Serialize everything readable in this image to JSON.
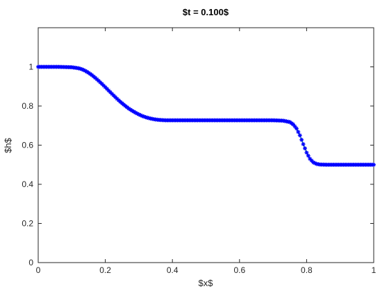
{
  "chart_data": {
    "type": "line",
    "title": "$t = 0.100$",
    "xlabel": "$x$",
    "ylabel": "$h$",
    "xlim": [
      0,
      1
    ],
    "ylim": [
      0,
      1.2
    ],
    "grid": false,
    "x_ticks": [
      0,
      0.2,
      0.4,
      0.6,
      0.8,
      1
    ],
    "x_tick_labels": [
      "0",
      "0.2",
      "0.4",
      "0.6",
      "0.8",
      "1"
    ],
    "y_ticks": [
      0,
      0.2,
      0.4,
      0.6,
      0.8,
      1
    ],
    "y_tick_labels": [
      "0",
      "0.2",
      "0.4",
      "0.6",
      "0.8",
      "1"
    ],
    "series": [
      {
        "marker": "asterisk",
        "color": "#0000ff",
        "line_color": "#008080",
        "x": [
          0.0,
          0.02,
          0.04,
          0.06,
          0.08,
          0.1,
          0.12,
          0.13,
          0.14,
          0.15,
          0.16,
          0.17,
          0.18,
          0.19,
          0.2,
          0.21,
          0.22,
          0.23,
          0.24,
          0.25,
          0.26,
          0.27,
          0.28,
          0.29,
          0.3,
          0.31,
          0.32,
          0.33,
          0.34,
          0.35,
          0.36,
          0.37,
          0.38,
          0.39,
          0.4,
          0.41,
          0.42,
          0.44,
          0.46,
          0.48,
          0.5,
          0.55,
          0.6,
          0.65,
          0.7,
          0.73,
          0.75,
          0.76,
          0.77,
          0.78,
          0.79,
          0.8,
          0.81,
          0.82,
          0.83,
          0.84,
          0.86,
          0.88,
          0.9,
          0.95,
          1.0
        ],
        "y": [
          1.0,
          1.0,
          1.0,
          1.0,
          0.999,
          0.998,
          0.993,
          0.988,
          0.98,
          0.97,
          0.958,
          0.944,
          0.929,
          0.913,
          0.896,
          0.879,
          0.862,
          0.845,
          0.829,
          0.814,
          0.8,
          0.787,
          0.776,
          0.766,
          0.757,
          0.749,
          0.743,
          0.738,
          0.734,
          0.731,
          0.729,
          0.728,
          0.727,
          0.727,
          0.727,
          0.727,
          0.727,
          0.727,
          0.727,
          0.727,
          0.727,
          0.727,
          0.727,
          0.727,
          0.727,
          0.725,
          0.718,
          0.706,
          0.685,
          0.65,
          0.605,
          0.562,
          0.53,
          0.512,
          0.504,
          0.501,
          0.5,
          0.5,
          0.5,
          0.5,
          0.5
        ]
      }
    ]
  }
}
